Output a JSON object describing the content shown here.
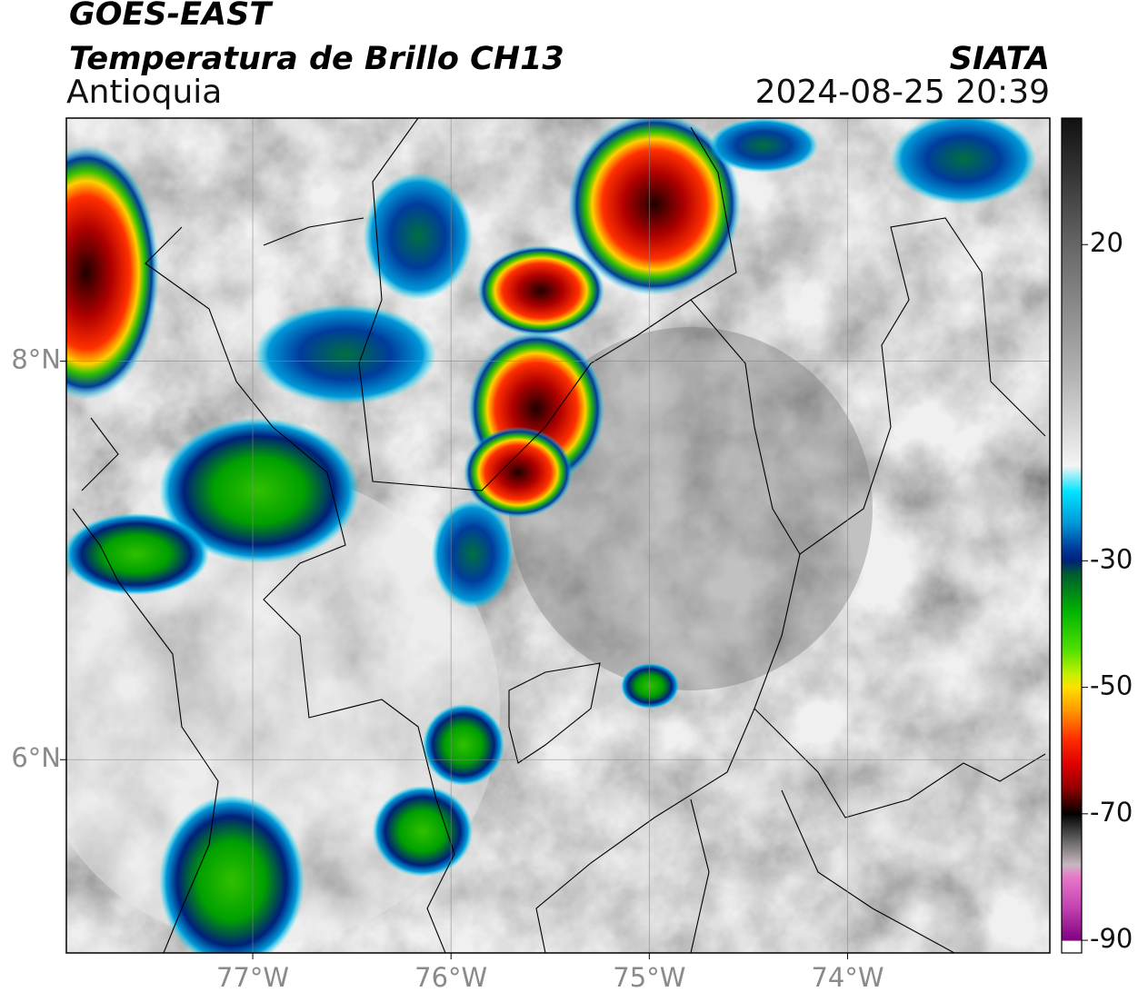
{
  "header": {
    "satellite": "GOES-EAST",
    "product": "Temperatura de Brillo CH13",
    "region": "Antioquia",
    "agency": "SIATA",
    "datetime": "2024-08-25 20:39"
  },
  "map": {
    "xlim": [
      -77.94,
      -72.98
    ],
    "ylim": [
      5.03,
      9.22
    ],
    "xticks": [
      {
        "value": -77,
        "label": "77°W"
      },
      {
        "value": -76,
        "label": "76°W"
      },
      {
        "value": -75,
        "label": "75°W"
      },
      {
        "value": -74,
        "label": "74°W"
      }
    ],
    "yticks": [
      {
        "value": 8,
        "label": "8°N"
      },
      {
        "value": 6,
        "label": "6°N"
      }
    ],
    "grid": true
  },
  "colorbar": {
    "clim": [
      -92,
      40
    ],
    "ticks": [
      20,
      -30,
      -50,
      -70,
      -90
    ],
    "colormap": [
      {
        "value": 40,
        "color": "#111111"
      },
      {
        "value": 30,
        "color": "#3a3a3a"
      },
      {
        "value": 20,
        "color": "#666666"
      },
      {
        "value": 0,
        "color": "#b0b0b0"
      },
      {
        "value": -15,
        "color": "#f4f4f4"
      },
      {
        "value": -19,
        "color": "#00e5ff"
      },
      {
        "value": -24,
        "color": "#0098d8"
      },
      {
        "value": -28,
        "color": "#003c9c"
      },
      {
        "value": -30,
        "color": "#00207a"
      },
      {
        "value": -32,
        "color": "#005c30"
      },
      {
        "value": -38,
        "color": "#00b400"
      },
      {
        "value": -44,
        "color": "#50e000"
      },
      {
        "value": -48,
        "color": "#c8f000"
      },
      {
        "value": -50,
        "color": "#ffe000"
      },
      {
        "value": -54,
        "color": "#ff9000"
      },
      {
        "value": -58,
        "color": "#ff3000"
      },
      {
        "value": -62,
        "color": "#e00000"
      },
      {
        "value": -66,
        "color": "#900000"
      },
      {
        "value": -70,
        "color": "#000000"
      },
      {
        "value": -74,
        "color": "#606060"
      },
      {
        "value": -78,
        "color": "#c8b8c0"
      },
      {
        "value": -80,
        "color": "#e878c8"
      },
      {
        "value": -85,
        "color": "#c040b0"
      },
      {
        "value": -90,
        "color": "#800080"
      }
    ]
  }
}
